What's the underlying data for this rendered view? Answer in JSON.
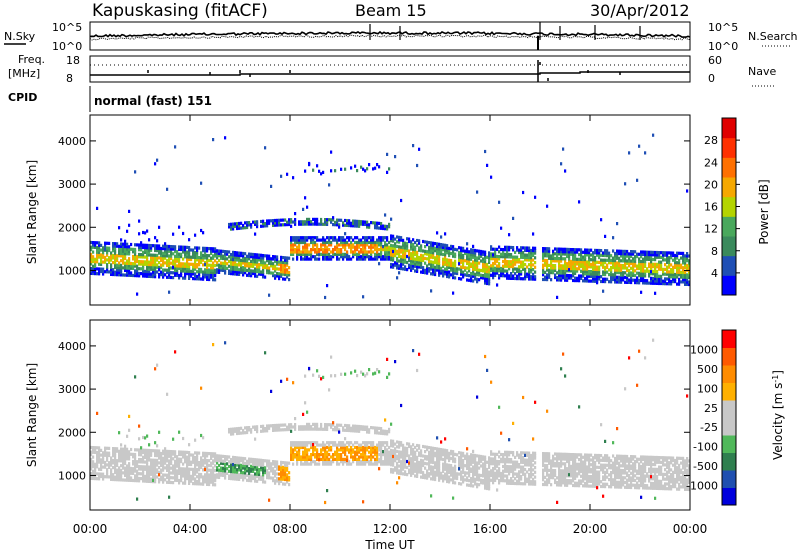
{
  "header": {
    "station": "Kapuskasing (fitACF)",
    "beam": "Beam 15",
    "date": "30/Apr/2012"
  },
  "noise_panel": {
    "left_label": "N.Sky",
    "right_label": "N.Search",
    "left_ticks": [
      "10^5",
      "10^0"
    ],
    "right_ticks": [
      "10^5",
      "10^0"
    ]
  },
  "freq_panel": {
    "left_label": "Freq.",
    "left_unit": "[MHz]",
    "left_ticks": [
      "18",
      "8"
    ],
    "right_label": "Nave",
    "right_ticks": [
      "60",
      "0"
    ]
  },
  "cpid_panel": {
    "label": "CPID",
    "program": "normal (fast) 151"
  },
  "colors": {
    "power_scale": [
      "#0000ff",
      "#1f4fb5",
      "#3a8a5c",
      "#49a85c",
      "#b4d400",
      "#f5a800",
      "#ff7000",
      "#ff3000",
      "#e00000"
    ],
    "velocity_scale": [
      "#ff0000",
      "#ff5a00",
      "#ff8c00",
      "#ffb000",
      "#c8c8c8",
      "#c8c8c8",
      "#50b85a",
      "#2f7f4f",
      "#1f4fb0",
      "#0000dd"
    ]
  },
  "chart_data": [
    {
      "type": "heatmap",
      "name": "power",
      "ylabel": "Slant Range [km]",
      "yticks": [
        1000,
        2000,
        3000,
        4000
      ],
      "ylim": [
        200,
        4600
      ],
      "xlim": [
        0,
        24
      ],
      "colorbar": {
        "label": "Power [dB]",
        "ticks": [
          "4",
          "8",
          "12",
          "16",
          "20",
          "24",
          "28"
        ],
        "range": [
          0,
          32
        ]
      }
    },
    {
      "type": "heatmap",
      "name": "velocity",
      "ylabel": "Slant Range [km]",
      "yticks": [
        1000,
        2000,
        3000,
        4000
      ],
      "ylim": [
        200,
        4600
      ],
      "xlim": [
        0,
        24
      ],
      "colorbar": {
        "label": "Velocity [m s^-1]",
        "ticks": [
          "1000",
          "500",
          "100",
          "25",
          "-25",
          "-100",
          "-500",
          "-1000"
        ]
      }
    }
  ],
  "xaxis": {
    "ticks": [
      "00:00",
      "04:00",
      "08:00",
      "12:00",
      "16:00",
      "20:00",
      "00:00"
    ],
    "tick_hours": [
      0,
      4,
      8,
      12,
      16,
      20,
      24
    ],
    "label": "Time UT"
  }
}
